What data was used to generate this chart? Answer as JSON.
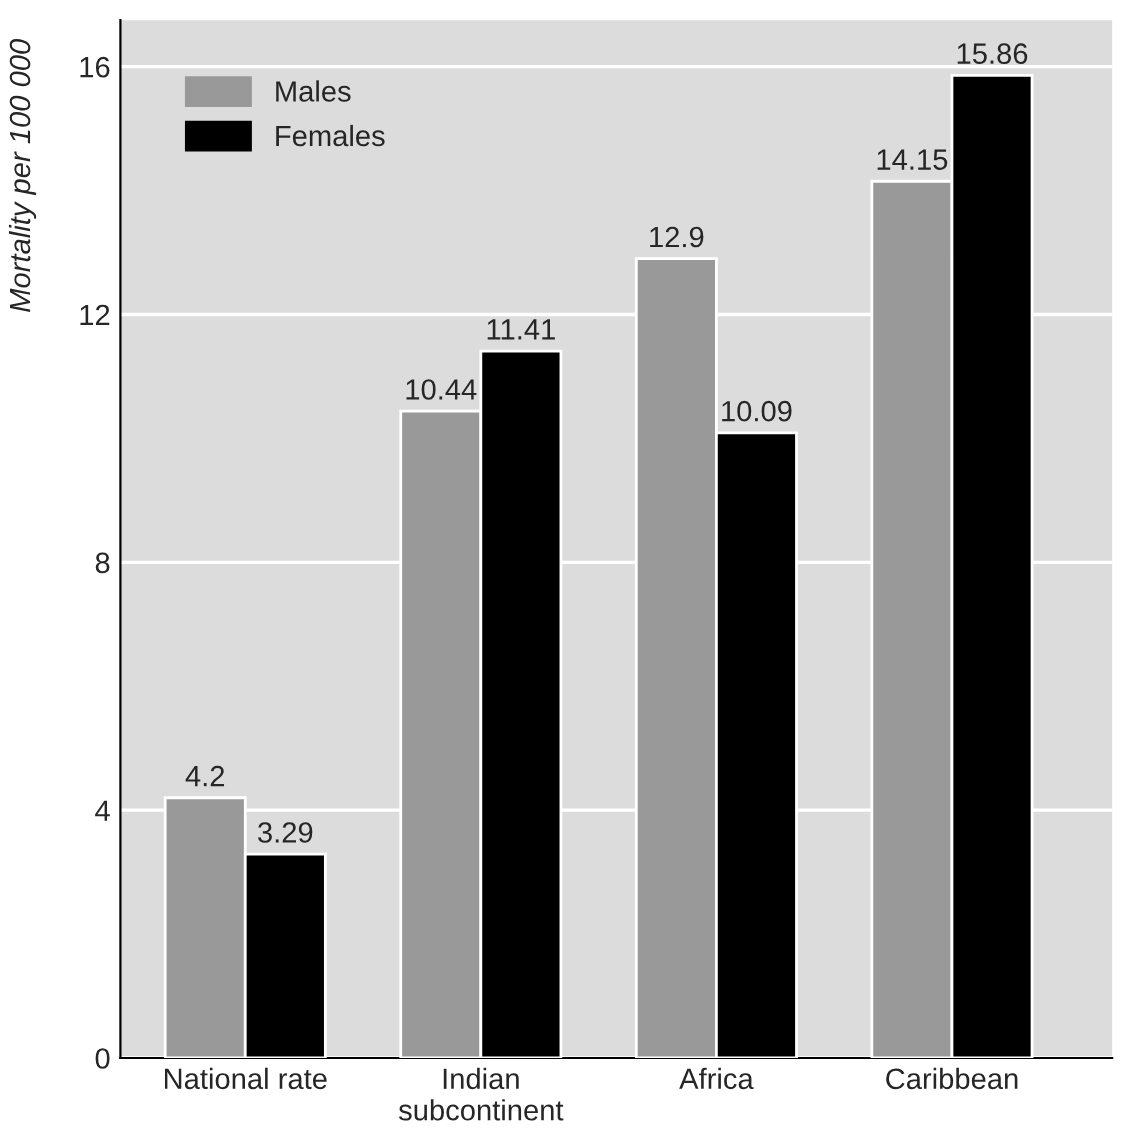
{
  "chart_data": {
    "type": "bar",
    "ylabel": "Mortality per 100 000",
    "categories": [
      "National rate",
      "Indian\nsubcontinent",
      "Africa",
      "Caribbean"
    ],
    "series": [
      {
        "name": "Males",
        "color": "#999999",
        "values": [
          4.2,
          10.44,
          12.9,
          14.15
        ]
      },
      {
        "name": "Females",
        "color": "#000000",
        "values": [
          3.29,
          11.41,
          10.09,
          15.86
        ]
      }
    ],
    "ylim": [
      0,
      16.75
    ],
    "yticks": [
      0,
      4,
      8,
      12,
      16
    ],
    "grid": "y",
    "legend": "top left",
    "data_labels": true
  }
}
